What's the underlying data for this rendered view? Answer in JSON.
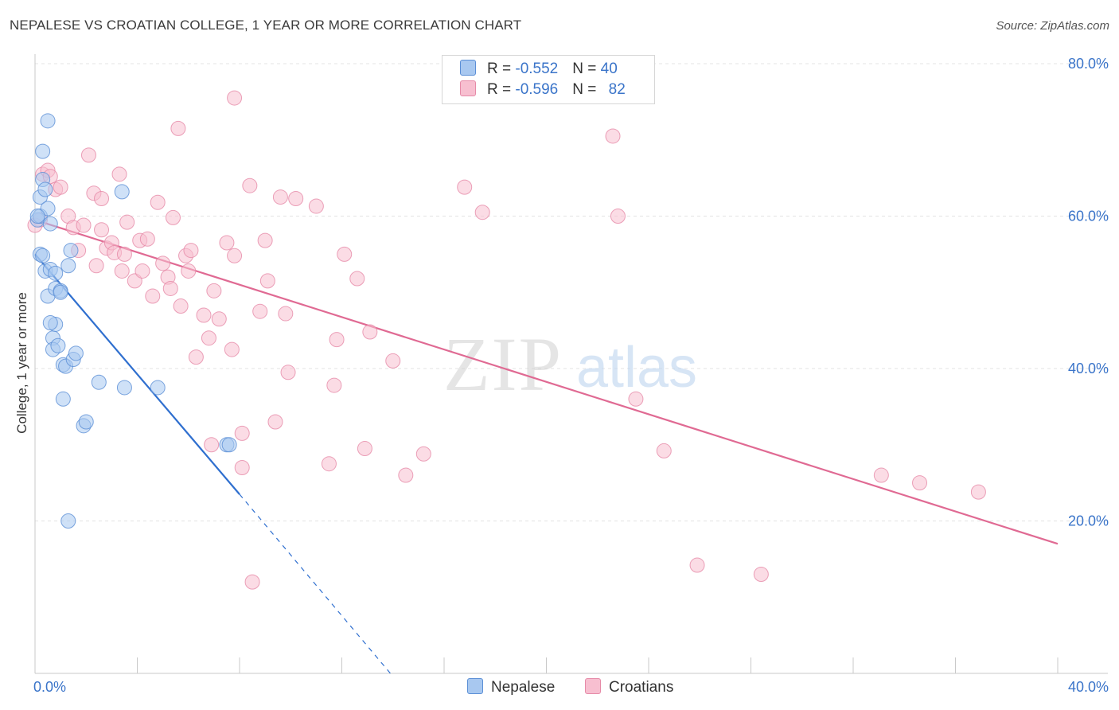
{
  "title": "NEPALESE VS CROATIAN COLLEGE, 1 YEAR OR MORE CORRELATION CHART",
  "source": "Source: ZipAtlas.com",
  "watermark": {
    "zip": "ZIP",
    "atlas": "atlas"
  },
  "colors": {
    "nepalese_fill": "#a8c8f0",
    "nepalese_stroke": "#5b8fd6",
    "nepalese_line": "#2f6fcf",
    "croatians_fill": "#f7bfd0",
    "croatians_stroke": "#e68aa8",
    "croatians_line": "#e06a93",
    "tick_text": "#3a74c9",
    "grid": "#e3e3e3"
  },
  "legend_top": {
    "rows": [
      {
        "r_label": "R = ",
        "r_value": "-0.552",
        "n_label": "N = ",
        "n_value": "40"
      },
      {
        "r_label": "R = ",
        "r_value": "-0.596",
        "n_label": "N = ",
        "n_value": "82"
      }
    ]
  },
  "legend_bottom": {
    "nepalese": "Nepalese",
    "croatians": "Croatians"
  },
  "chart_data": {
    "type": "scatter",
    "title": "NEPALESE VS CROATIAN COLLEGE, 1 YEAR OR MORE CORRELATION CHART",
    "xlabel": "",
    "ylabel": "College, 1 year or more",
    "xlim": [
      0,
      40
    ],
    "ylim": [
      0,
      80
    ],
    "x_tick_labels": [
      "0.0%",
      "40.0%"
    ],
    "y_ticks": [
      20,
      40,
      60,
      80
    ],
    "y_tick_labels": [
      "20.0%",
      "40.0%",
      "60.0%",
      "80.0%"
    ],
    "grid": true,
    "series": [
      {
        "name": "Nepalese",
        "R": -0.552,
        "N": 40,
        "trend": {
          "x": [
            0.0,
            8.0
          ],
          "y": [
            55.0,
            23.5
          ],
          "dashed_to": {
            "x": 13.9,
            "y": 0.0
          }
        },
        "points": [
          [
            0.1,
            59.5
          ],
          [
            0.2,
            62.5
          ],
          [
            0.2,
            60.0
          ],
          [
            0.2,
            55.0
          ],
          [
            0.3,
            54.8
          ],
          [
            0.3,
            68.5
          ],
          [
            0.3,
            64.8
          ],
          [
            0.4,
            63.5
          ],
          [
            0.4,
            52.8
          ],
          [
            0.5,
            72.5
          ],
          [
            0.5,
            61.0
          ],
          [
            0.5,
            49.5
          ],
          [
            0.6,
            59.0
          ],
          [
            0.6,
            53.0
          ],
          [
            0.7,
            44.0
          ],
          [
            0.7,
            42.5
          ],
          [
            0.8,
            45.8
          ],
          [
            0.8,
            50.5
          ],
          [
            0.8,
            52.5
          ],
          [
            0.9,
            43.0
          ],
          [
            1.0,
            50.2
          ],
          [
            1.0,
            50.0
          ],
          [
            1.1,
            36.0
          ],
          [
            1.1,
            40.5
          ],
          [
            1.2,
            40.3
          ],
          [
            1.3,
            53.5
          ],
          [
            1.4,
            55.5
          ],
          [
            1.5,
            41.2
          ],
          [
            1.6,
            42.0
          ],
          [
            1.9,
            32.5
          ],
          [
            2.0,
            33.0
          ],
          [
            2.5,
            38.2
          ],
          [
            3.4,
            63.2
          ],
          [
            3.5,
            37.5
          ],
          [
            4.8,
            37.5
          ],
          [
            7.5,
            30.0
          ],
          [
            7.6,
            30.0
          ],
          [
            0.1,
            60.0
          ],
          [
            1.3,
            20.0
          ],
          [
            0.6,
            46.0
          ]
        ]
      },
      {
        "name": "Croatians",
        "R": -0.596,
        "N": 82,
        "trend": {
          "x": [
            0.0,
            40.0
          ],
          "y": [
            59.5,
            17.0
          ]
        },
        "points": [
          [
            0.2,
            59.5
          ],
          [
            0.3,
            65.5
          ],
          [
            0.5,
            66.0
          ],
          [
            0.6,
            65.2
          ],
          [
            0.8,
            63.5
          ],
          [
            1.0,
            63.8
          ],
          [
            1.3,
            60.0
          ],
          [
            1.5,
            58.5
          ],
          [
            1.7,
            55.5
          ],
          [
            1.9,
            58.8
          ],
          [
            2.1,
            68.0
          ],
          [
            2.3,
            63.0
          ],
          [
            2.4,
            53.5
          ],
          [
            2.6,
            62.3
          ],
          [
            2.6,
            58.2
          ],
          [
            2.8,
            55.8
          ],
          [
            3.0,
            56.5
          ],
          [
            3.1,
            55.2
          ],
          [
            3.3,
            65.5
          ],
          [
            3.4,
            52.8
          ],
          [
            3.5,
            55.0
          ],
          [
            3.6,
            59.2
          ],
          [
            3.9,
            51.5
          ],
          [
            4.1,
            56.8
          ],
          [
            4.2,
            52.8
          ],
          [
            4.4,
            57.0
          ],
          [
            4.6,
            49.5
          ],
          [
            4.8,
            61.8
          ],
          [
            5.0,
            53.8
          ],
          [
            5.2,
            52.0
          ],
          [
            5.3,
            50.5
          ],
          [
            5.4,
            59.8
          ],
          [
            5.6,
            71.5
          ],
          [
            5.7,
            48.2
          ],
          [
            5.9,
            54.8
          ],
          [
            6.0,
            52.8
          ],
          [
            6.1,
            55.5
          ],
          [
            6.3,
            41.5
          ],
          [
            6.6,
            47.0
          ],
          [
            6.8,
            44.0
          ],
          [
            6.9,
            30.0
          ],
          [
            7.0,
            50.2
          ],
          [
            7.2,
            46.5
          ],
          [
            7.5,
            56.5
          ],
          [
            7.7,
            42.5
          ],
          [
            7.8,
            54.8
          ],
          [
            7.8,
            75.5
          ],
          [
            8.1,
            31.5
          ],
          [
            8.1,
            27.0
          ],
          [
            8.4,
            64.0
          ],
          [
            8.5,
            12.0
          ],
          [
            8.8,
            47.5
          ],
          [
            9.0,
            56.8
          ],
          [
            9.1,
            51.5
          ],
          [
            9.4,
            33.0
          ],
          [
            9.6,
            62.5
          ],
          [
            9.8,
            47.2
          ],
          [
            9.9,
            39.5
          ],
          [
            10.2,
            62.3
          ],
          [
            11.0,
            61.3
          ],
          [
            11.5,
            27.5
          ],
          [
            11.7,
            37.8
          ],
          [
            11.8,
            43.8
          ],
          [
            12.1,
            55.0
          ],
          [
            12.6,
            51.8
          ],
          [
            12.9,
            29.5
          ],
          [
            13.1,
            44.8
          ],
          [
            14.0,
            41.0
          ],
          [
            14.5,
            26.0
          ],
          [
            15.2,
            28.8
          ],
          [
            16.8,
            63.8
          ],
          [
            17.5,
            60.5
          ],
          [
            22.6,
            70.5
          ],
          [
            22.8,
            60.0
          ],
          [
            23.5,
            36.0
          ],
          [
            24.6,
            29.2
          ],
          [
            25.9,
            14.2
          ],
          [
            28.4,
            13.0
          ],
          [
            33.1,
            26.0
          ],
          [
            34.6,
            25.0
          ],
          [
            36.9,
            23.8
          ],
          [
            0.0,
            58.8
          ]
        ]
      }
    ]
  }
}
